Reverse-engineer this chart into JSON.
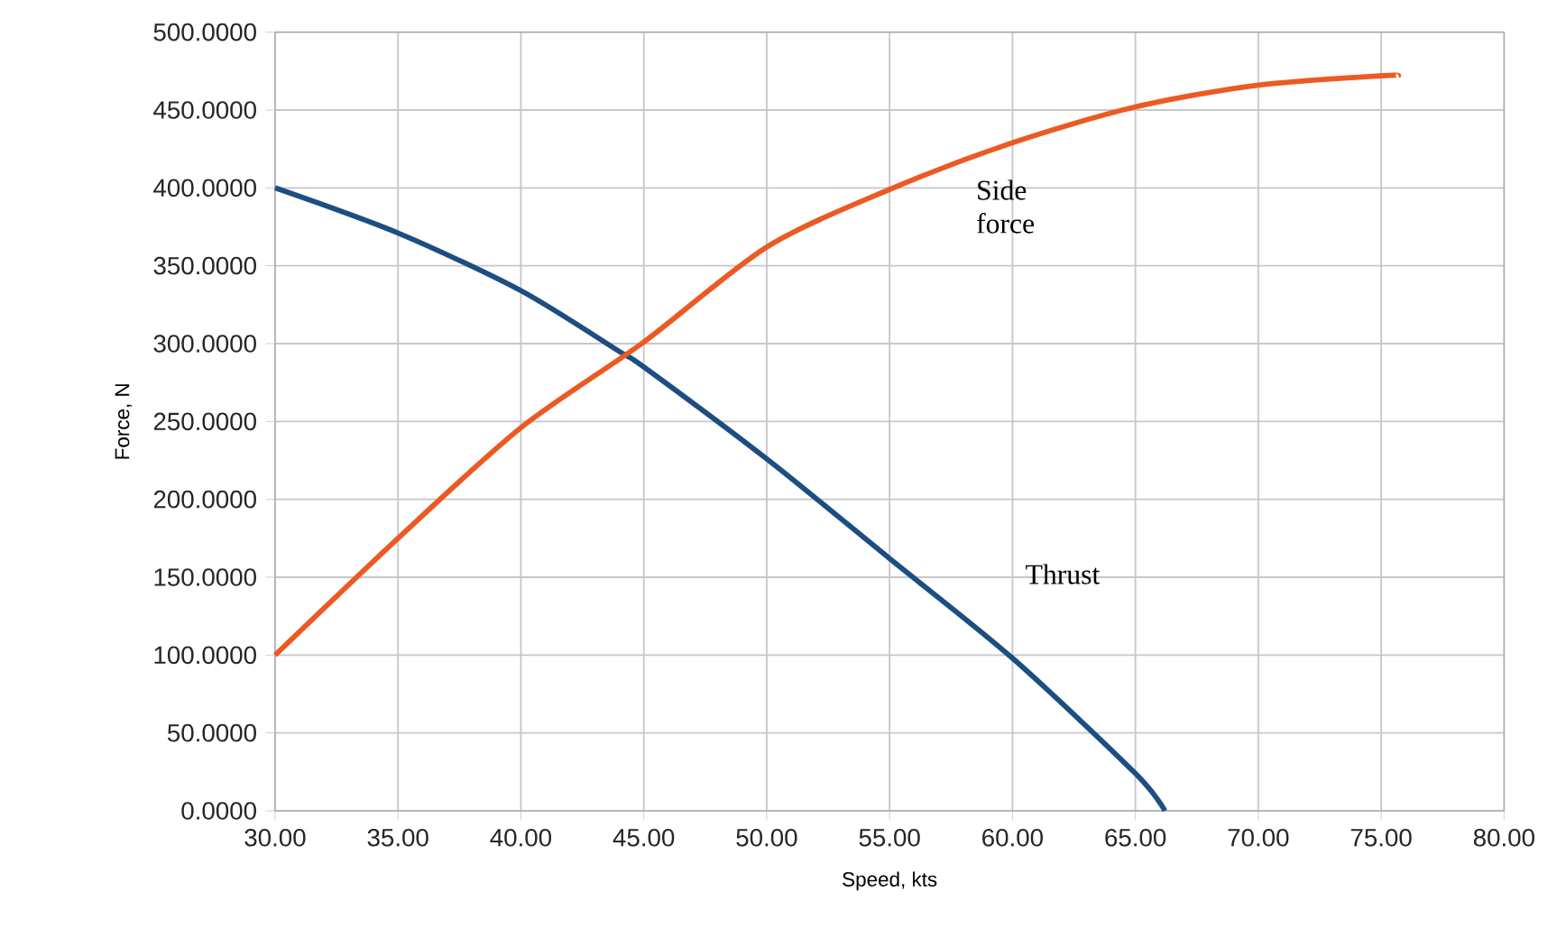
{
  "chart_data": {
    "type": "line",
    "xlabel": "Speed, kts",
    "ylabel": "Force, N",
    "xlim": [
      30,
      80
    ],
    "ylim": [
      0,
      500
    ],
    "xticks": [
      {
        "value": 30,
        "label": "30.00"
      },
      {
        "value": 35,
        "label": "35.00"
      },
      {
        "value": 40,
        "label": "40.00"
      },
      {
        "value": 45,
        "label": "45.00"
      },
      {
        "value": 50,
        "label": "50.00"
      },
      {
        "value": 55,
        "label": "55.00"
      },
      {
        "value": 60,
        "label": "60.00"
      },
      {
        "value": 65,
        "label": "65.00"
      },
      {
        "value": 70,
        "label": "70.00"
      },
      {
        "value": 75,
        "label": "75.00"
      },
      {
        "value": 80,
        "label": "80.00"
      }
    ],
    "yticks": [
      {
        "value": 0,
        "label": "0.0000"
      },
      {
        "value": 50,
        "label": "50.0000"
      },
      {
        "value": 100,
        "label": "100.0000"
      },
      {
        "value": 150,
        "label": "150.0000"
      },
      {
        "value": 200,
        "label": "200.0000"
      },
      {
        "value": 250,
        "label": "250.0000"
      },
      {
        "value": 300,
        "label": "300.0000"
      },
      {
        "value": 350,
        "label": "350.0000"
      },
      {
        "value": 400,
        "label": "400.0000"
      },
      {
        "value": 450,
        "label": "450.0000"
      },
      {
        "value": 500,
        "label": "500.0000"
      }
    ],
    "grid": true,
    "marker": "none",
    "line_style": "solid",
    "series": [
      {
        "name": "Thrust",
        "color": "#1d4e82",
        "x": [
          30,
          35,
          40,
          44,
          45,
          50,
          55,
          60,
          65,
          66.2
        ],
        "values": [
          400,
          371,
          334,
          295,
          285,
          226,
          162,
          98,
          24,
          0
        ]
      },
      {
        "name": "Side force",
        "color": "#ec5a24",
        "x": [
          30,
          35,
          40,
          45,
          50,
          55,
          60,
          65,
          70,
          75,
          75.7
        ],
        "values": [
          100,
          175,
          246,
          301,
          362,
          399,
          429,
          452,
          466,
          472,
          472
        ]
      }
    ]
  }
}
